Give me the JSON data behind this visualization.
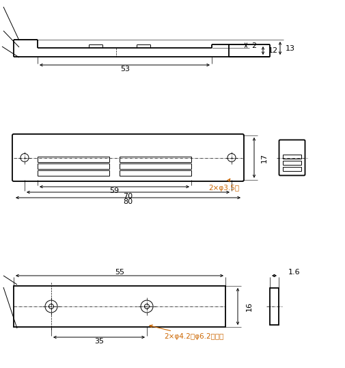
{
  "bg_color": "#ffffff",
  "lc": "#000000",
  "dc": "#000000",
  "ac": "#cc6600",
  "figsize": [
    5.05,
    5.38
  ],
  "dpi": 100
}
